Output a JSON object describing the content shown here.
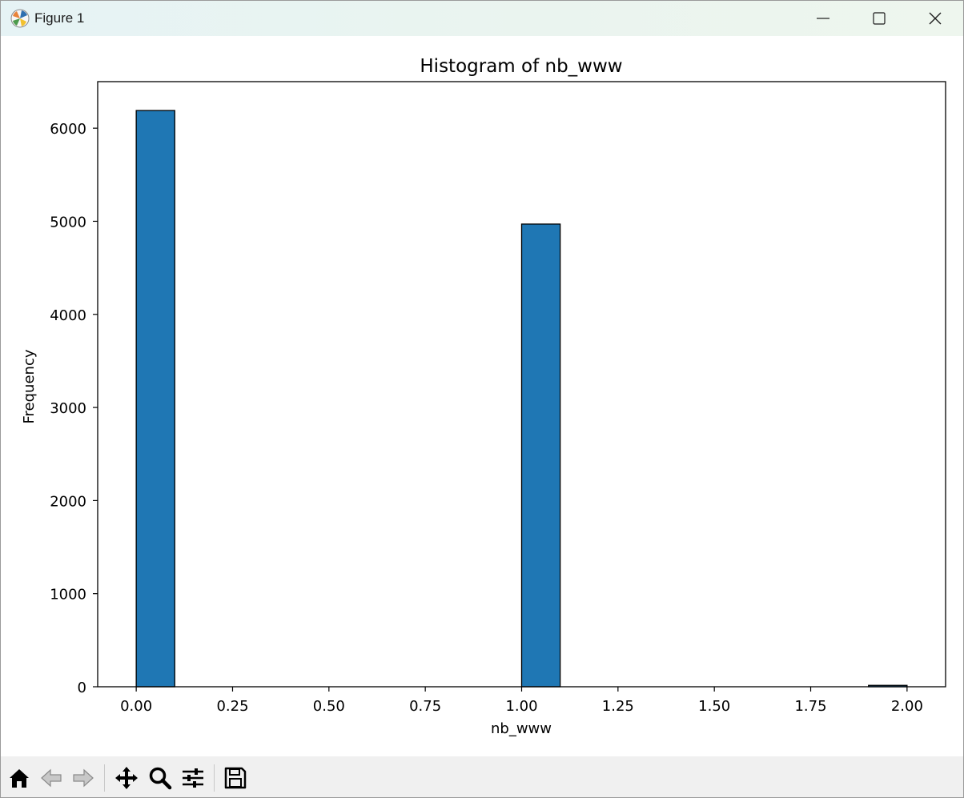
{
  "window": {
    "title": "Figure 1"
  },
  "icons": {
    "app": "matplotlib-icon",
    "minimize": "minimize-icon",
    "maximize": "maximize-icon",
    "close": "close-icon"
  },
  "toolbar": {
    "buttons": [
      "home-icon",
      "back-arrow-icon",
      "forward-arrow-icon",
      "pan-move-icon",
      "zoom-magnifier-icon",
      "configure-subplots-icon",
      "save-disk-icon"
    ]
  },
  "colors": {
    "bar_fill": "#1f77b4",
    "bar_edge": "#000000"
  },
  "chart_data": {
    "type": "bar",
    "title": "Histogram of nb_www",
    "xlabel": "nb_www",
    "ylabel": "Frequency",
    "bins": 20,
    "bin_edges": [
      0.0,
      0.1,
      0.2,
      0.3,
      0.4,
      0.5,
      0.6,
      0.7,
      0.8,
      0.9,
      1.0,
      1.1,
      1.2,
      1.3,
      1.4,
      1.5,
      1.6,
      1.7,
      1.8,
      1.9,
      2.0
    ],
    "values": [
      6190,
      0,
      0,
      0,
      0,
      0,
      0,
      0,
      0,
      0,
      4970,
      0,
      0,
      0,
      0,
      0,
      0,
      0,
      0,
      15
    ],
    "xlim": [
      -0.1,
      2.1
    ],
    "ylim": [
      0,
      6500
    ],
    "xticks": [
      "0.00",
      "0.25",
      "0.50",
      "0.75",
      "1.00",
      "1.25",
      "1.50",
      "1.75",
      "2.00"
    ],
    "yticks": [
      "0",
      "1000",
      "2000",
      "3000",
      "4000",
      "5000",
      "6000"
    ],
    "grid": false,
    "legend": false
  }
}
